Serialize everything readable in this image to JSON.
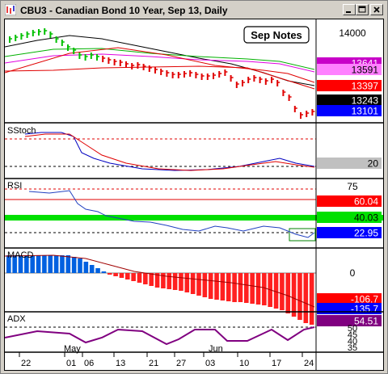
{
  "window": {
    "title": "CBU3 - Canadian Bond 10 Year, Sep 13, Daily",
    "controls": [
      "minimize",
      "maximize",
      "close"
    ]
  },
  "price_panel": {
    "annotation": "Sep Notes",
    "axis_label": "14000",
    "badges": [
      {
        "text": "13641",
        "bg": "#c800c8",
        "fg": "#ffffff"
      },
      {
        "text": "13591",
        "bg": "#ff80ff",
        "fg": "#000000"
      },
      {
        "text": "13397",
        "bg": "#ff0000",
        "fg": "#ffffff"
      },
      {
        "text": "13243",
        "bg": "#000000",
        "fg": "#ffffff"
      },
      {
        "text": "13101",
        "bg": "#0000ff",
        "fg": "#ffffff"
      }
    ]
  },
  "stoch_panel": {
    "label": "SStoch",
    "badge": {
      "text": "20",
      "bg": "#c0c0c0",
      "fg": "#000000"
    }
  },
  "rsi_panel": {
    "label": "RSI",
    "axis_label": "75",
    "badges": [
      {
        "text": "60.04",
        "bg": "#ff0000",
        "fg": "#ffffff"
      },
      {
        "text": "40.03",
        "bg": "#00e000",
        "fg": "#000000"
      },
      {
        "text": "22.95",
        "bg": "#0000ff",
        "fg": "#ffffff"
      }
    ]
  },
  "macd_panel": {
    "label": "MACD",
    "axis_label": "0",
    "badges": [
      {
        "text": "-106.7",
        "bg": "#ff0000",
        "fg": "#ffffff"
      },
      {
        "text": "-135.7",
        "bg": "#0000ff",
        "fg": "#ffffff"
      }
    ]
  },
  "adx_panel": {
    "label": "ADX",
    "badge": {
      "text": "54.51",
      "bg": "#800080",
      "fg": "#ffffff"
    },
    "axis_labels": [
      "50",
      "45",
      "40",
      "35"
    ]
  },
  "x_axis": {
    "month_labels": [
      "May",
      "Jun"
    ],
    "day_labels": [
      "22",
      "01",
      "06",
      "13",
      "21",
      "27",
      "03",
      "10",
      "17",
      "24"
    ]
  },
  "colors": {
    "price_bar": "#e00000",
    "price_bar_early": "#00c000",
    "ma_black": "#000000",
    "ma_red": "#e00000",
    "ma_green": "#00b000",
    "ma_magenta": "#e000e0",
    "stoch_k": "#0000c0",
    "stoch_d": "#e00000",
    "rsi_line": "#2040c0",
    "rsi_band": "#00ff00",
    "macd_pos": "#0060e0",
    "macd_neg": "#ff2020",
    "adx_line": "#800080"
  }
}
